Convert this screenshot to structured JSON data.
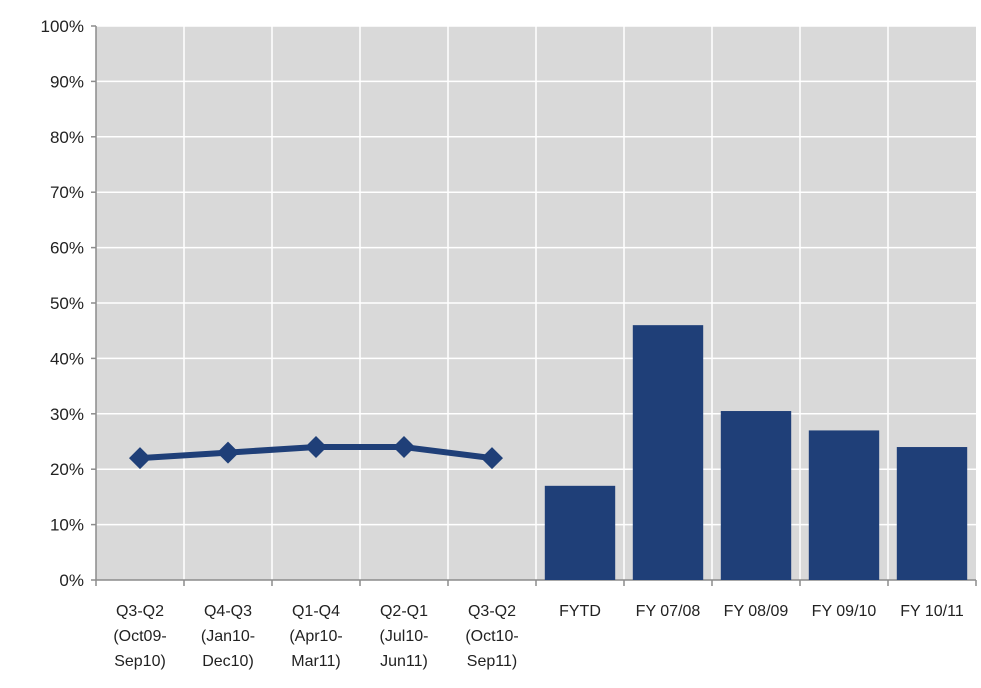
{
  "chart_data": {
    "type": "bar",
    "title": "",
    "xlabel": "",
    "ylabel": "",
    "ylim": [
      0,
      100
    ],
    "y_ticks": [
      "0%",
      "10%",
      "20%",
      "30%",
      "40%",
      "50%",
      "60%",
      "70%",
      "80%",
      "90%",
      "100%"
    ],
    "y_tick_values": [
      0,
      10,
      20,
      30,
      40,
      50,
      60,
      70,
      80,
      90,
      100
    ],
    "grid": true,
    "legend": "none",
    "categories": [
      [
        "Q3-Q2",
        "(Oct09-",
        "Sep10)"
      ],
      [
        "Q4-Q3",
        "(Jan10-",
        "Dec10)"
      ],
      [
        "Q1-Q4",
        "(Apr10-",
        "Mar11)"
      ],
      [
        "Q2-Q1",
        "(Jul10-",
        "Jun11)"
      ],
      [
        "Q3-Q2",
        "(Oct10-",
        "Sep11)"
      ],
      [
        "FYTD"
      ],
      [
        "FY 07/08"
      ],
      [
        "FY 08/09"
      ],
      [
        "FY 09/10"
      ],
      [
        "FY 10/11"
      ]
    ],
    "series": [
      {
        "type": "line",
        "values": [
          22,
          23,
          24,
          24,
          22,
          null,
          null,
          null,
          null,
          null
        ]
      },
      {
        "type": "bar",
        "values": [
          null,
          null,
          null,
          null,
          null,
          17,
          46,
          30.5,
          27,
          24
        ]
      }
    ],
    "colors": {
      "series": "#1f3f78",
      "plot_background": "#d9d9d9",
      "grid": "#ffffff"
    }
  }
}
